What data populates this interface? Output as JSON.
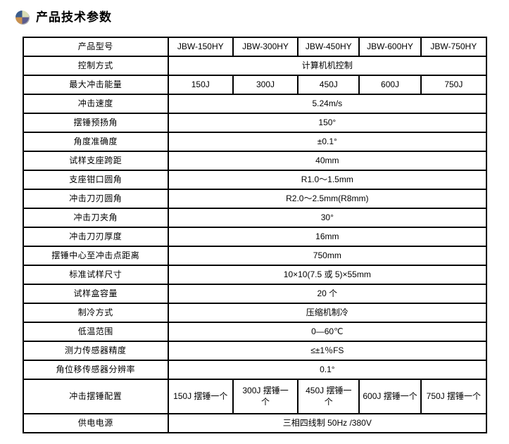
{
  "header": {
    "title": "产品技术参数",
    "icon": "pie-quadrant-icon",
    "icon_colors": {
      "top_left": "#3a5c8c",
      "top_right": "#d9ddb5",
      "bottom_left": "#c9914f",
      "bottom_right": "#5b5c8e"
    }
  },
  "table": {
    "border_color": "#000000",
    "label_column_header": "产品型号",
    "rows": [
      {
        "label": "产品型号",
        "cells": [
          "JBW-150HY",
          "JBW-300HY",
          "JBW-450HY",
          "JBW-600HY",
          "JBW-750HY"
        ]
      },
      {
        "label": "控制方式",
        "cells": [
          "计算机机控制"
        ]
      },
      {
        "label": "最大冲击能量",
        "cells": [
          "150J",
          "300J",
          "450J",
          "600J",
          "750J"
        ]
      },
      {
        "label": "冲击速度",
        "cells": [
          "5.24m/s"
        ]
      },
      {
        "label": "摆锤预扬角",
        "cells": [
          "150°"
        ]
      },
      {
        "label": "角度准确度",
        "cells": [
          "±0.1°"
        ]
      },
      {
        "label": "试样支座跨距",
        "cells": [
          "40mm"
        ]
      },
      {
        "label": "支座钳口圆角",
        "cells": [
          "R1.0～1.5mm"
        ]
      },
      {
        "label": "冲击刀刃圆角",
        "cells": [
          "R2.0～2.5mm(R8mm)"
        ]
      },
      {
        "label": "冲击刀夹角",
        "cells": [
          "30°"
        ]
      },
      {
        "label": "冲击刀刃厚度",
        "cells": [
          "16mm"
        ]
      },
      {
        "label": "摆锤中心至冲击点距离",
        "cells": [
          "750mm"
        ]
      },
      {
        "label": "标准试样尺寸",
        "cells": [
          "10×10(7.5 或 5)×55mm"
        ]
      },
      {
        "label": "试样盒容量",
        "cells": [
          "20 个"
        ]
      },
      {
        "label": "制冷方式",
        "cells": [
          "压缩机制冷"
        ]
      },
      {
        "label": "低温范围",
        "cells": [
          "0—60℃"
        ]
      },
      {
        "label": "测力传感器精度",
        "cells": [
          "≤±1％FS"
        ]
      },
      {
        "label": "角位移传感器分辨率",
        "cells": [
          "0.1°"
        ]
      },
      {
        "label": "冲击摆锤配置",
        "tall": true,
        "cells": [
          "150J 摆锤一个",
          "300J 摆锤一\n个",
          "450J 摆锤一\n个",
          "600J 摆锤一个",
          "750J 摆锤一个"
        ]
      },
      {
        "label": "供电电源",
        "cells": [
          "三相四线制 50Hz /380V"
        ]
      }
    ]
  }
}
